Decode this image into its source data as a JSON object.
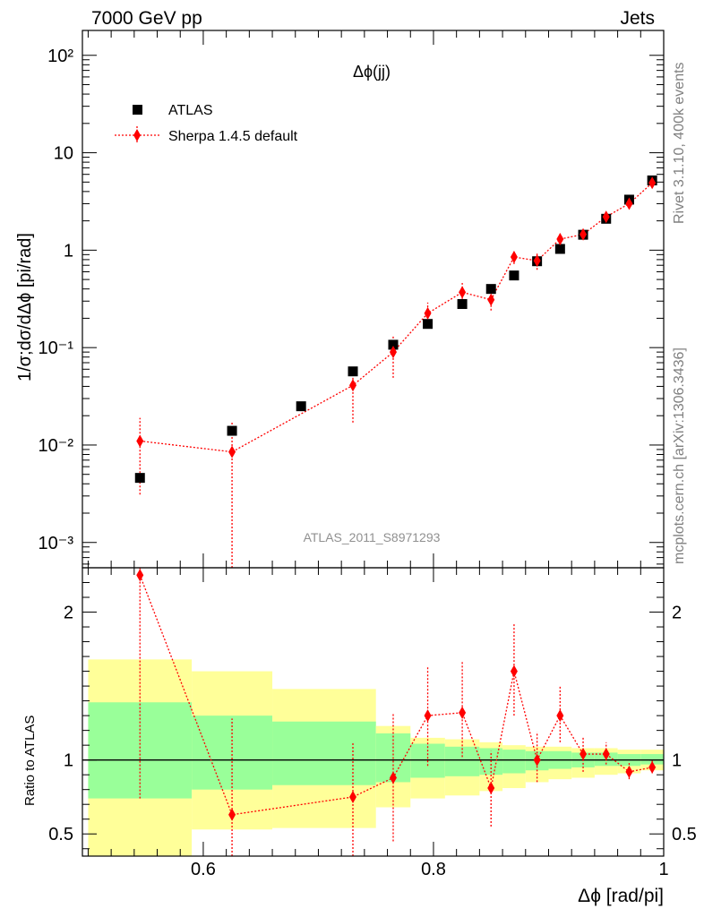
{
  "header": {
    "left": "7000 GeV pp",
    "right": "Jets"
  },
  "side_labels": {
    "rivet": "Rivet 3.1.10,  400k events",
    "mcplots": "mcplots.cern.ch [arXiv:1306.3436]"
  },
  "chart_data": [
    {
      "type": "scatter",
      "title": "Δϕ(jj)",
      "xlabel": "",
      "ylabel": "1/σ;dσ/dΔϕ [pi/rad]",
      "yscale": "log",
      "xlim": [
        0.495,
        1.0
      ],
      "ylim": [
        0.00055,
        180
      ],
      "watermark": "ATLAS_2011_S8971293",
      "legend_position": "top-left",
      "y_tick_labels": [
        "10⁻³",
        "10⁻²",
        "10⁻¹",
        "1",
        "10",
        "10²"
      ],
      "series": [
        {
          "name": "ATLAS",
          "color": "#000000",
          "marker": "square",
          "x": [
            0.545,
            0.625,
            0.685,
            0.73,
            0.765,
            0.795,
            0.825,
            0.85,
            0.87,
            0.89,
            0.91,
            0.93,
            0.95,
            0.97,
            0.99
          ],
          "y": [
            0.0046,
            0.014,
            0.025,
            0.057,
            0.107,
            0.175,
            0.28,
            0.4,
            0.55,
            0.77,
            1.03,
            1.44,
            2.1,
            3.3,
            5.2
          ]
        },
        {
          "name": "Sherpa 1.4.5 default",
          "color": "#ff0000",
          "marker": "diamond",
          "x": [
            0.545,
            0.625,
            0.73,
            0.765,
            0.795,
            0.825,
            0.85,
            0.87,
            0.89,
            0.91,
            0.93,
            0.95,
            0.97,
            0.99
          ],
          "y": [
            0.011,
            0.0085,
            0.041,
            0.09,
            0.225,
            0.37,
            0.31,
            0.85,
            0.78,
            1.3,
            1.45,
            2.2,
            3.0,
            4.9
          ],
          "y_low": [
            0.0031,
            0.0005,
            0.017,
            0.049,
            0.17,
            0.29,
            0.24,
            0.72,
            0.63,
            1.13,
            1.29,
            2.03,
            2.8,
            4.6
          ],
          "y_high": [
            0.019,
            0.017,
            0.065,
            0.13,
            0.29,
            0.46,
            0.4,
            1.0,
            0.92,
            1.48,
            1.62,
            2.37,
            3.2,
            5.2
          ]
        }
      ]
    },
    {
      "type": "scatter",
      "title": "",
      "xlabel": "Δϕ [rad/pi]",
      "ylabel": "Ratio to ATLAS",
      "xlim": [
        0.495,
        1.0
      ],
      "ylim": [
        0.35,
        2.3
      ],
      "x_ticks": [
        0.6,
        0.8,
        1
      ],
      "x_tick_labels": [
        "0.6",
        "0.8",
        "1"
      ],
      "y_ticks": [
        0.5,
        1,
        2
      ],
      "y_tick_labels": [
        "0.5",
        "1",
        "2"
      ],
      "bands": {
        "edges": [
          0.5,
          0.59,
          0.66,
          0.75,
          0.78,
          0.81,
          0.84,
          0.86,
          0.88,
          0.9,
          0.92,
          0.94,
          0.96,
          0.98,
          1.0
        ],
        "yellow_low": [
          0.1,
          0.53,
          0.54,
          0.68,
          0.74,
          0.76,
          0.79,
          0.81,
          0.85,
          0.87,
          0.88,
          0.9,
          0.91,
          0.93
        ],
        "yellow_high": [
          1.68,
          1.6,
          1.48,
          1.23,
          1.15,
          1.14,
          1.12,
          1.1,
          1.09,
          1.09,
          1.08,
          1.08,
          1.07,
          1.07
        ],
        "green_low": [
          0.74,
          0.8,
          0.83,
          0.85,
          0.88,
          0.89,
          0.9,
          0.91,
          0.93,
          0.94,
          0.95,
          0.96,
          0.96,
          0.97
        ],
        "green_high": [
          1.39,
          1.3,
          1.26,
          1.18,
          1.11,
          1.09,
          1.08,
          1.07,
          1.06,
          1.06,
          1.05,
          1.05,
          1.04,
          1.04
        ]
      },
      "series": [
        {
          "name": "Sherpa 1.4.5 default",
          "color": "#ff0000",
          "marker": "diamond",
          "x": [
            0.545,
            0.625,
            0.73,
            0.765,
            0.795,
            0.825,
            0.85,
            0.87,
            0.89,
            0.91,
            0.93,
            0.95,
            0.97,
            0.99
          ],
          "y": [
            2.25,
            0.63,
            0.75,
            0.88,
            1.3,
            1.32,
            0.81,
            1.6,
            1.0,
            1.3,
            1.04,
            1.04,
            0.92,
            0.95
          ],
          "y_low": [
            0.74,
            0.3,
            0.3,
            0.45,
            0.96,
            1.02,
            0.55,
            1.3,
            0.85,
            1.12,
            0.92,
            0.97,
            0.87,
            0.91
          ],
          "y_high": [
            2.3,
            1.28,
            1.12,
            1.31,
            1.63,
            1.67,
            1.06,
            1.93,
            1.19,
            1.5,
            1.15,
            1.12,
            0.98,
            1.0
          ]
        }
      ]
    }
  ]
}
